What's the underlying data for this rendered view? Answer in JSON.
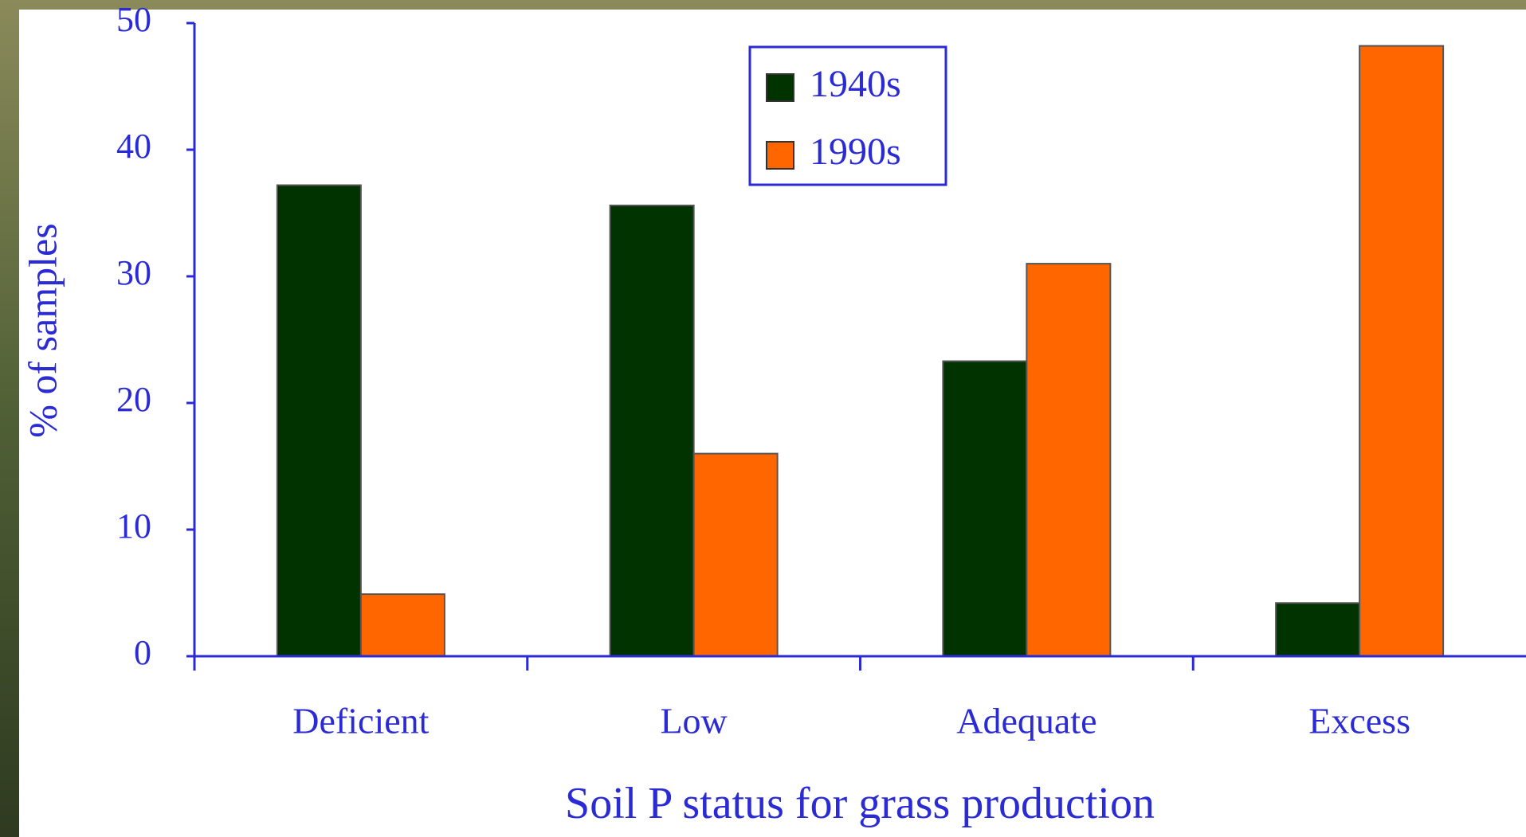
{
  "chart_data": {
    "type": "bar",
    "y_label": "% of samples",
    "x_label": "Soil P status for grass production",
    "categories": [
      "Deficient",
      "Low",
      "Adequate",
      "Excess"
    ],
    "series": [
      {
        "name": "1940s",
        "color": "#003300",
        "values": [
          37.2,
          35.6,
          23.3,
          4.2
        ]
      },
      {
        "name": "1990s",
        "color": "#ff6600",
        "values": [
          4.9,
          16.0,
          31.0,
          48.2
        ]
      }
    ],
    "ylim": [
      0,
      50
    ],
    "yticks": [
      0,
      10,
      20,
      30,
      40,
      50
    ]
  }
}
